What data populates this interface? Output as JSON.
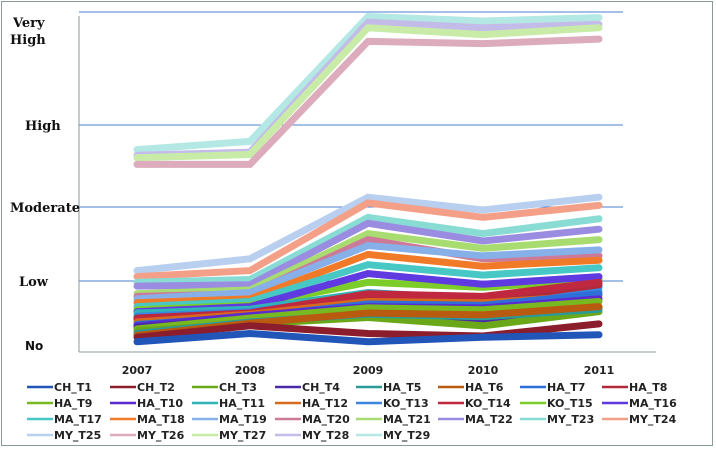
{
  "chart_data": {
    "type": "line",
    "title": "",
    "xlabel": "",
    "ylabel": "",
    "x": [
      "2007",
      "2008",
      "2009",
      "2010",
      "2011"
    ],
    "y_levels": [
      {
        "value": 0,
        "label": "No"
      },
      {
        "value": 1,
        "label": "Low"
      },
      {
        "value": 2,
        "label": "Moderate"
      },
      {
        "value": 3,
        "label": "High"
      },
      {
        "value": 4,
        "label": "Very High"
      }
    ],
    "ylim": [
      0,
      4
    ],
    "grid": true,
    "legend_position": "bottom",
    "series": [
      {
        "name": "CH_T1",
        "color": "#2255b8",
        "values": [
          0.05,
          0.18,
          0.05,
          0.12,
          0.16
        ]
      },
      {
        "name": "CH_T2",
        "color": "#8b1d2c",
        "values": [
          0.12,
          0.3,
          0.18,
          0.14,
          0.33
        ]
      },
      {
        "name": "CH_T3",
        "color": "#6aa81a",
        "values": [
          0.22,
          0.33,
          0.43,
          0.3,
          0.52
        ]
      },
      {
        "name": "CH_T4",
        "color": "#4b2aa8",
        "values": [
          0.28,
          0.4,
          0.52,
          0.4,
          0.58
        ]
      },
      {
        "name": "HA_T5",
        "color": "#2a9a98",
        "values": [
          0.18,
          0.36,
          0.48,
          0.44,
          0.56
        ]
      },
      {
        "name": "HA_T6",
        "color": "#b85a10",
        "values": [
          0.15,
          0.34,
          0.5,
          0.47,
          0.6
        ]
      },
      {
        "name": "HA_T7",
        "color": "#2f6fd8",
        "values": [
          0.32,
          0.44,
          0.64,
          0.62,
          0.8
        ]
      },
      {
        "name": "HA_T8",
        "color": "#b02a3c",
        "values": [
          0.42,
          0.5,
          0.72,
          0.7,
          0.94
        ]
      },
      {
        "name": "HA_T9",
        "color": "#78b820",
        "values": [
          0.25,
          0.42,
          0.58,
          0.55,
          0.68
        ]
      },
      {
        "name": "HA_T10",
        "color": "#5a2ad0",
        "values": [
          0.3,
          0.46,
          0.6,
          0.58,
          0.72
        ]
      },
      {
        "name": "HA_T11",
        "color": "#30b4b8",
        "values": [
          0.5,
          0.56,
          0.82,
          0.72,
          0.84
        ]
      },
      {
        "name": "HA_T12",
        "color": "#d86a1c",
        "values": [
          0.36,
          0.48,
          0.68,
          0.66,
          0.78
        ]
      },
      {
        "name": "KO_T13",
        "color": "#3a86e0",
        "values": [
          0.45,
          0.52,
          0.76,
          0.74,
          0.9
        ]
      },
      {
        "name": "KO_T14",
        "color": "#c02840",
        "values": [
          0.4,
          0.5,
          0.8,
          0.76,
          0.98
        ]
      },
      {
        "name": "KO_T15",
        "color": "#7ccc2a",
        "values": [
          0.55,
          0.62,
          0.98,
          0.9,
          1.02
        ]
      },
      {
        "name": "MA_T16",
        "color": "#5f3ae0",
        "values": [
          0.52,
          0.6,
          1.1,
          0.95,
          1.06
        ]
      },
      {
        "name": "MA_T17",
        "color": "#48c8c4",
        "values": [
          0.6,
          0.68,
          1.22,
          1.08,
          1.18
        ]
      },
      {
        "name": "MA_T18",
        "color": "#f07a28",
        "values": [
          0.66,
          0.72,
          1.36,
          1.2,
          1.28
        ]
      },
      {
        "name": "MA_T19",
        "color": "#88b0e8",
        "values": [
          0.72,
          0.82,
          1.48,
          1.34,
          1.42
        ]
      },
      {
        "name": "MA_T20",
        "color": "#cc7a98",
        "values": [
          0.76,
          0.8,
          1.56,
          1.3,
          1.34
        ]
      },
      {
        "name": "MA_T21",
        "color": "#a8dc70",
        "values": [
          0.8,
          0.86,
          1.64,
          1.44,
          1.56
        ]
      },
      {
        "name": "MA_T22",
        "color": "#9a8ce0",
        "values": [
          0.92,
          0.94,
          1.78,
          1.54,
          1.7
        ]
      },
      {
        "name": "MY_T23",
        "color": "#88dcd4",
        "values": [
          0.98,
          1.02,
          1.86,
          1.64,
          1.84
        ]
      },
      {
        "name": "MY_T24",
        "color": "#f4a088",
        "values": [
          1.06,
          1.14,
          2.05,
          1.86,
          2.02
        ]
      },
      {
        "name": "MY_T25",
        "color": "#b8cff0",
        "values": [
          1.14,
          1.3,
          2.12,
          1.96,
          2.12
        ]
      },
      {
        "name": "MY_T26",
        "color": "#dcacbc",
        "values": [
          2.52,
          2.52,
          3.74,
          3.72,
          3.76
        ]
      },
      {
        "name": "MY_T27",
        "color": "#c8eca8",
        "values": [
          2.6,
          2.64,
          3.86,
          3.8,
          3.86
        ]
      },
      {
        "name": "MY_T28",
        "color": "#c4bce8",
        "values": [
          2.63,
          2.67,
          3.91,
          3.86,
          3.89
        ]
      },
      {
        "name": "MY_T29",
        "color": "#b4e8e4",
        "values": [
          2.7,
          2.8,
          3.96,
          3.92,
          3.95
        ]
      }
    ]
  }
}
